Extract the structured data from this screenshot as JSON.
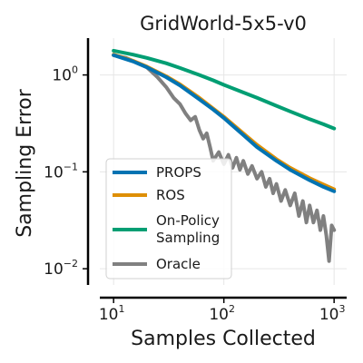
{
  "chart_data": {
    "type": "line",
    "title": "GridWorld-5x5-v0",
    "xlabel": "Samples Collected",
    "ylabel": "Sampling Error",
    "xscale": "log",
    "yscale": "log",
    "xlim": [
      7.5,
      1300
    ],
    "ylim": [
      0.0068,
      2.4
    ],
    "grid": true,
    "legend_position": "lower-left",
    "x_ticks": [
      {
        "base": "10",
        "exp": "1",
        "value": 10
      },
      {
        "base": "10",
        "exp": "2",
        "value": 100
      },
      {
        "base": "10",
        "exp": "3",
        "value": 1000
      }
    ],
    "y_ticks": [
      {
        "base": "10",
        "exp": "0",
        "value": 1
      },
      {
        "base": "10",
        "exp": "−1",
        "value": 0.1
      },
      {
        "base": "10",
        "exp": "−2",
        "value": 0.01
      }
    ],
    "series": [
      {
        "name": "PROPS",
        "color": "#0173b2",
        "x": [
          10,
          15,
          20,
          30,
          40,
          60,
          80,
          100,
          150,
          200,
          300,
          400,
          600,
          800,
          1000
        ],
        "y": [
          1.6,
          1.38,
          1.2,
          0.95,
          0.78,
          0.56,
          0.44,
          0.36,
          0.24,
          0.18,
          0.13,
          0.105,
          0.082,
          0.07,
          0.063
        ]
      },
      {
        "name": "ROS",
        "color": "#de8f05",
        "x": [
          10,
          15,
          20,
          30,
          40,
          60,
          80,
          100,
          150,
          200,
          300,
          400,
          600,
          800,
          1000
        ],
        "y": [
          1.62,
          1.4,
          1.22,
          0.97,
          0.8,
          0.58,
          0.45,
          0.37,
          0.25,
          0.19,
          0.135,
          0.11,
          0.086,
          0.074,
          0.066
        ]
      },
      {
        "name": "On-Policy\nSampling",
        "color": "#029e73",
        "x": [
          10,
          15,
          20,
          30,
          40,
          60,
          80,
          100,
          150,
          200,
          300,
          400,
          600,
          800,
          1000
        ],
        "y": [
          1.78,
          1.62,
          1.5,
          1.32,
          1.18,
          1.0,
          0.88,
          0.79,
          0.66,
          0.58,
          0.48,
          0.42,
          0.35,
          0.31,
          0.28
        ]
      },
      {
        "name": "Oracle",
        "color": "#808080",
        "x": [
          10,
          13,
          16,
          20,
          25,
          30,
          35,
          40,
          45,
          50,
          55,
          60,
          65,
          70,
          75,
          80,
          90,
          100,
          110,
          120,
          130,
          140,
          150,
          165,
          180,
          200,
          220,
          240,
          260,
          280,
          300,
          330,
          360,
          400,
          440,
          480,
          520,
          560,
          600,
          650,
          700,
          750,
          800,
          850,
          900,
          950,
          1000
        ],
        "y": [
          1.6,
          1.5,
          1.35,
          1.2,
          0.95,
          0.75,
          0.58,
          0.5,
          0.4,
          0.34,
          0.37,
          0.27,
          0.22,
          0.25,
          0.18,
          0.13,
          0.16,
          0.12,
          0.15,
          0.11,
          0.14,
          0.105,
          0.13,
          0.095,
          0.115,
          0.085,
          0.1,
          0.07,
          0.085,
          0.06,
          0.075,
          0.05,
          0.065,
          0.045,
          0.06,
          0.035,
          0.05,
          0.03,
          0.045,
          0.03,
          0.04,
          0.025,
          0.035,
          0.022,
          0.012,
          0.028,
          0.025
        ]
      }
    ]
  }
}
